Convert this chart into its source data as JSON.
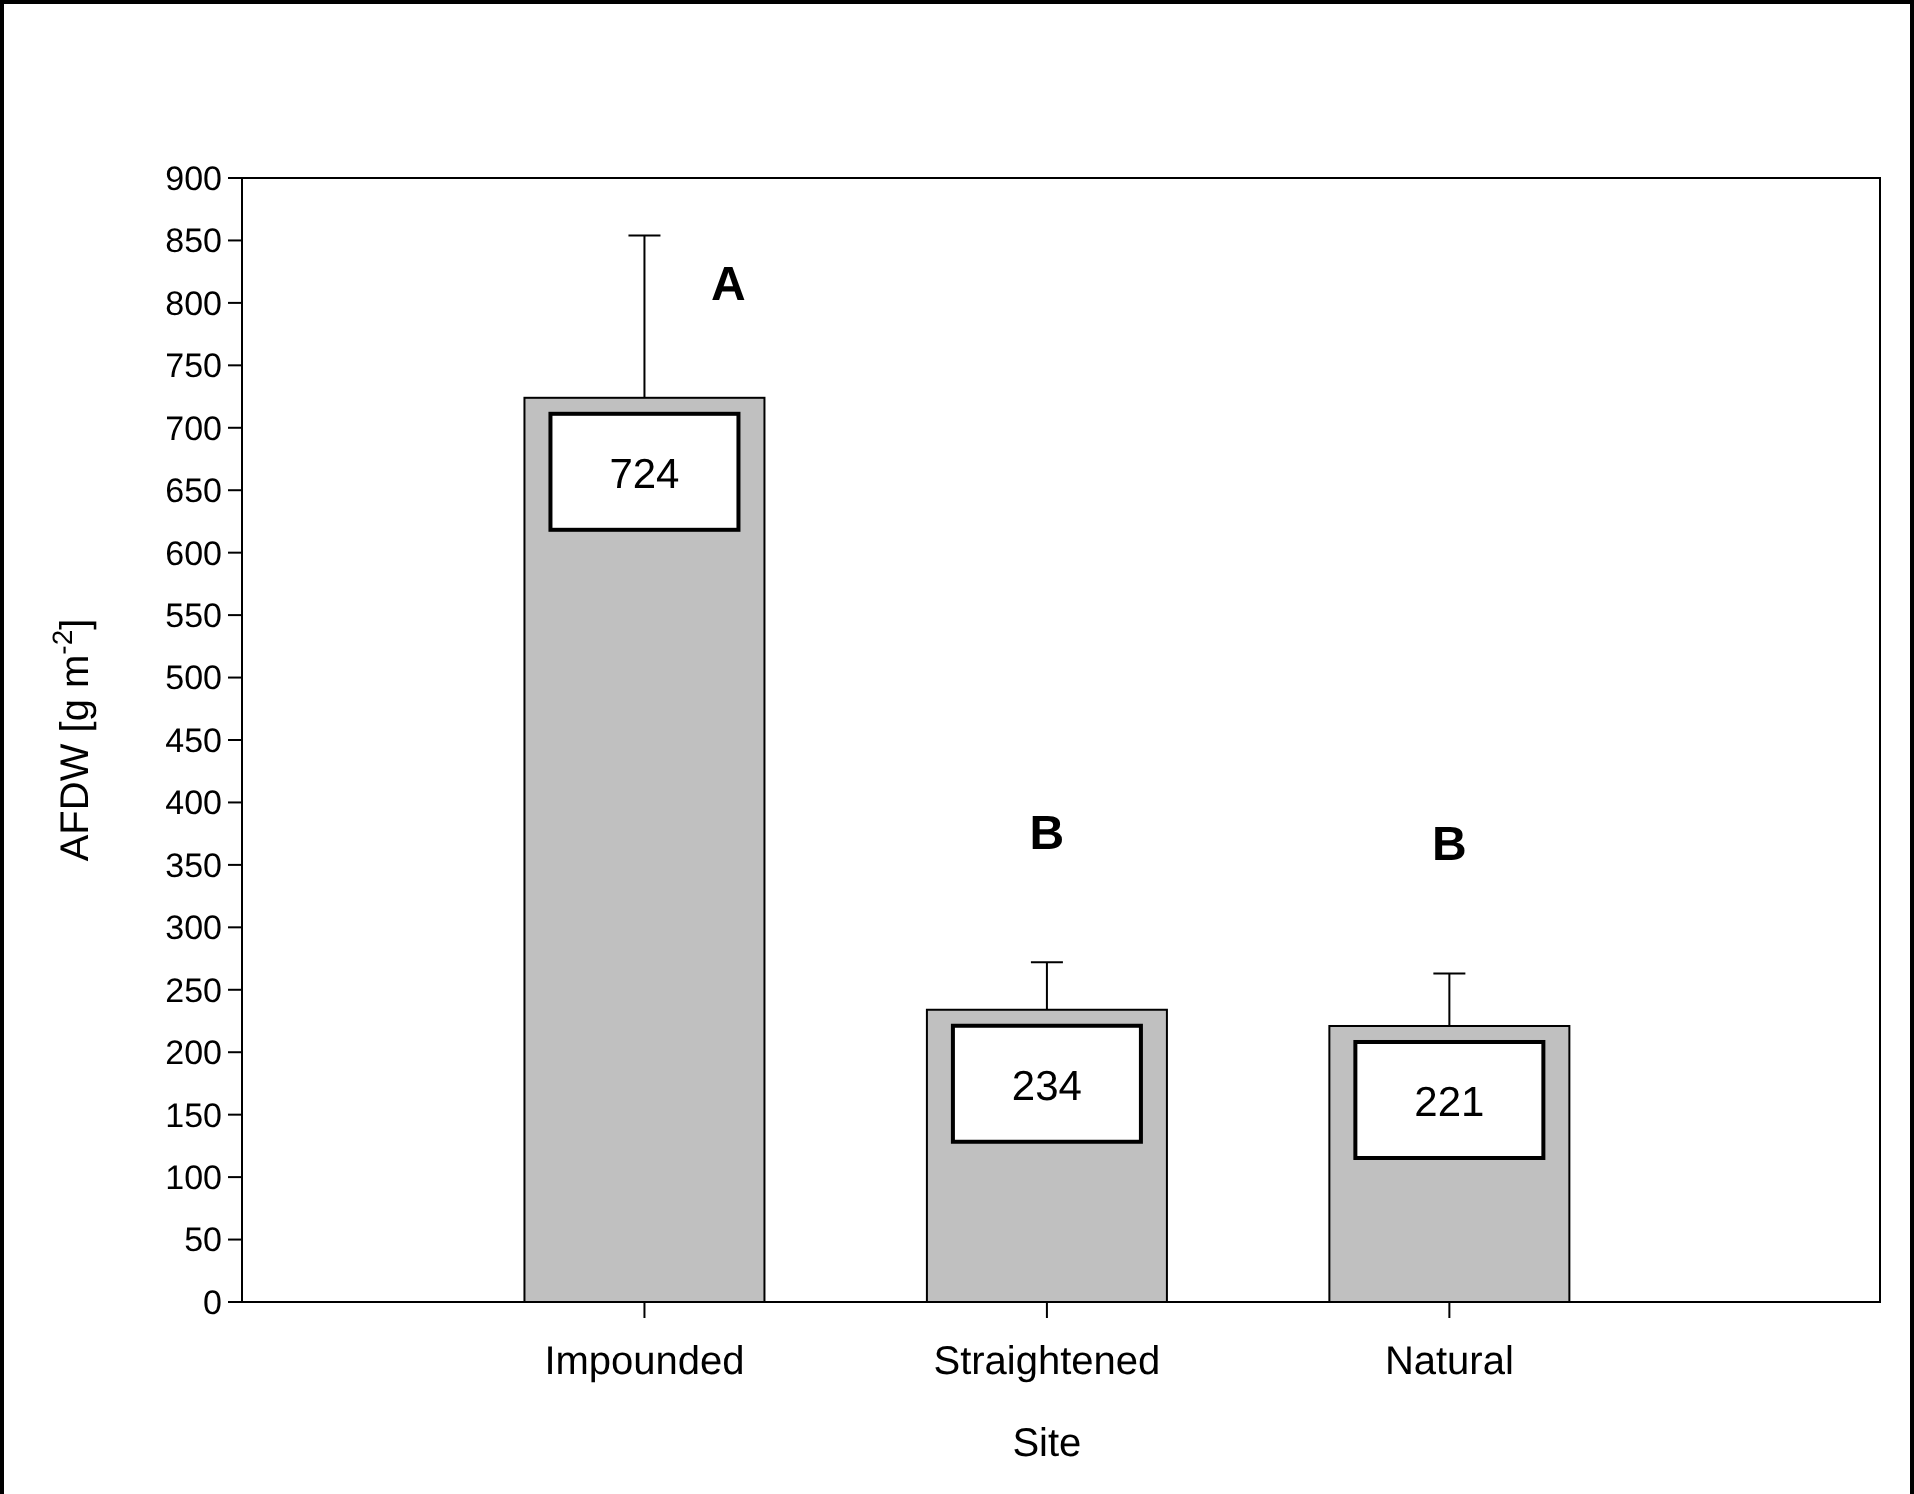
{
  "chart_data": {
    "type": "bar",
    "xlabel": "Site",
    "ylabel": "AFDW [g m$^{-2}$]",
    "categories": [
      "Impounded",
      "Straightened",
      "Natural"
    ],
    "values": [
      724,
      234,
      221
    ],
    "color": "#c0c0c0",
    "errors": [
      [
        724,
        854
      ],
      [
        234,
        272
      ],
      [
        221,
        263
      ]
    ],
    "data_labels": true,
    "ylim": [
      0,
      900
    ],
    "yticks": [
      0,
      50,
      100,
      150,
      200,
      250,
      300,
      350,
      400,
      450,
      500,
      550,
      600,
      650,
      700,
      750,
      800,
      850,
      900
    ],
    "annotations": [
      "A",
      "B",
      "B"
    ],
    "grid": false
  }
}
